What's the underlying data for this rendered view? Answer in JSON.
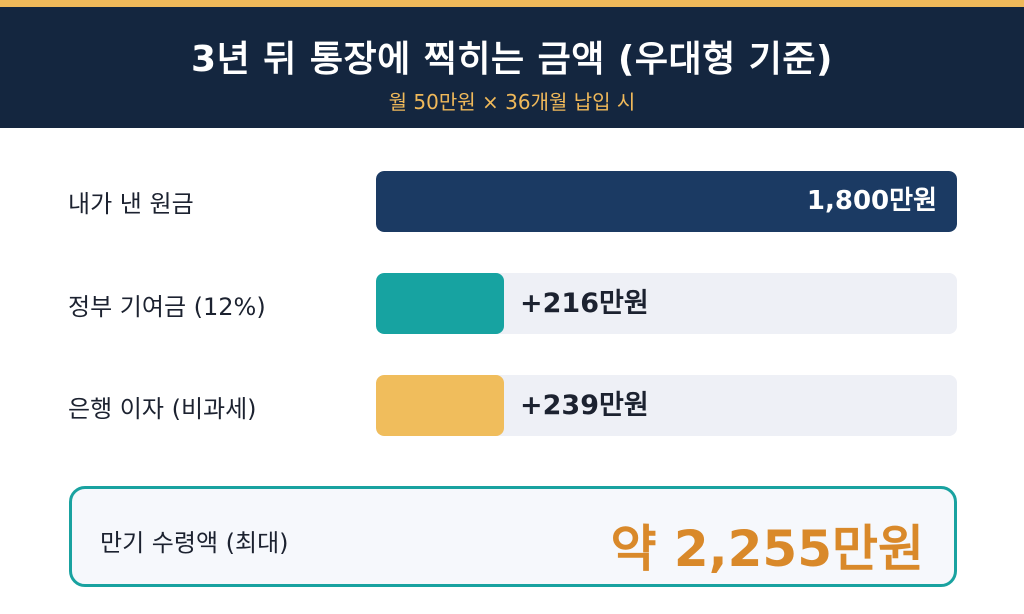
{
  "header": {
    "title": "3년 뒤 통장에 찍히는 금액 (우대형 기준)",
    "subtitle": "월 50만원 × 36개월 납입 시"
  },
  "colors": {
    "header_bg": "#14263f",
    "accent_gold": "#f0b95a",
    "principal": "#1b3a63",
    "government": "#17a3a1",
    "interest": "#f0bd5c",
    "total": "#d9892a"
  },
  "chart_data": {
    "type": "bar",
    "orientation": "horizontal",
    "title": "3년 뒤 통장에 찍히는 금액 (우대형 기준)",
    "subtitle": "월 50만원 × 36개월 납입 시",
    "unit": "만원",
    "categories": [
      "내가 낸 원금",
      "정부 기여금 (12%)",
      "은행 이자 (비과세)"
    ],
    "values": [
      1800,
      216,
      239
    ],
    "value_labels": [
      "1,800만원",
      "+216만원",
      "+239만원"
    ],
    "bar_fractions": [
      1.0,
      0.22,
      0.22
    ],
    "total": {
      "label": "만기 수령액 (최대)",
      "value": 2255,
      "value_label": "약 2,255만원"
    }
  }
}
